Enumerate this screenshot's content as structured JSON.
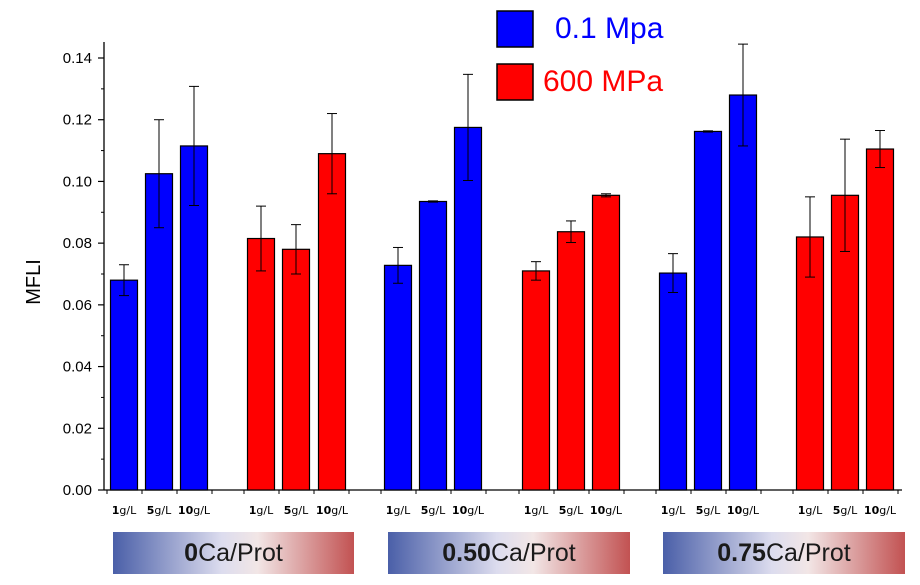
{
  "chart_data": {
    "type": "bar",
    "ylabel": "MFLI",
    "ylim": [
      0,
      0.145
    ],
    "yticks": [
      "0.00",
      "0.02",
      "0.04",
      "0.06",
      "0.08",
      "0.10",
      "0.12",
      "0.14"
    ],
    "legend_position": "top",
    "series": [
      {
        "name": "0.1 Mpa",
        "color": "#0000ff"
      },
      {
        "name": "600 MPa",
        "color": "#ff0000"
      }
    ],
    "groups": [
      {
        "label_bold": "0",
        "label_rest": "Ca/Prot"
      },
      {
        "label_bold": "0.50",
        "label_rest": "Ca/Prot"
      },
      {
        "label_bold": "0.75",
        "label_rest": "Ca/Prot"
      }
    ],
    "category_labels": [
      {
        "num": "1",
        "unit": "g/L"
      },
      {
        "num": "5",
        "unit": "g/L"
      },
      {
        "num": "10",
        "unit": "g/L"
      },
      {
        "num": "1",
        "unit": "g/L"
      },
      {
        "num": "5",
        "unit": "g/L"
      },
      {
        "num": "10",
        "unit": "g/L"
      },
      {
        "num": "1",
        "unit": "g/L"
      },
      {
        "num": "5",
        "unit": "g/L"
      },
      {
        "num": "10",
        "unit": "g/L"
      },
      {
        "num": "1",
        "unit": "g/L"
      },
      {
        "num": "5",
        "unit": "g/L"
      },
      {
        "num": "10",
        "unit": "g/L"
      },
      {
        "num": "1",
        "unit": "g/L"
      },
      {
        "num": "5",
        "unit": "g/L"
      },
      {
        "num": "10",
        "unit": "g/L"
      },
      {
        "num": "1",
        "unit": "g/L"
      },
      {
        "num": "5",
        "unit": "g/L"
      },
      {
        "num": "10",
        "unit": "g/L"
      }
    ],
    "bars": [
      {
        "group": 0,
        "series": 0,
        "category": "1 g/L",
        "value": 0.068,
        "error": 0.005
      },
      {
        "group": 0,
        "series": 0,
        "category": "5 g/L",
        "value": 0.1025,
        "error": 0.0175
      },
      {
        "group": 0,
        "series": 0,
        "category": "10 g/L",
        "value": 0.1115,
        "error": 0.0193
      },
      {
        "group": 0,
        "series": 1,
        "category": "1 g/L",
        "value": 0.0815,
        "error": 0.0105
      },
      {
        "group": 0,
        "series": 1,
        "category": "5 g/L",
        "value": 0.078,
        "error": 0.008
      },
      {
        "group": 0,
        "series": 1,
        "category": "10 g/L",
        "value": 0.109,
        "error": 0.013
      },
      {
        "group": 1,
        "series": 0,
        "category": "1 g/L",
        "value": 0.0728,
        "error": 0.0058
      },
      {
        "group": 1,
        "series": 0,
        "category": "5 g/L",
        "value": 0.0935,
        "error": 0.0002
      },
      {
        "group": 1,
        "series": 0,
        "category": "10 g/L",
        "value": 0.1175,
        "error": 0.0172
      },
      {
        "group": 1,
        "series": 1,
        "category": "1 g/L",
        "value": 0.071,
        "error": 0.003
      },
      {
        "group": 1,
        "series": 1,
        "category": "5 g/L",
        "value": 0.0837,
        "error": 0.0035
      },
      {
        "group": 1,
        "series": 1,
        "category": "10 g/L",
        "value": 0.0955,
        "error": 0.0005
      },
      {
        "group": 2,
        "series": 0,
        "category": "1 g/L",
        "value": 0.0703,
        "error": 0.0063
      },
      {
        "group": 2,
        "series": 0,
        "category": "5 g/L",
        "value": 0.1162,
        "error": 0.0002
      },
      {
        "group": 2,
        "series": 0,
        "category": "10 g/L",
        "value": 0.128,
        "error": 0.0165
      },
      {
        "group": 2,
        "series": 1,
        "category": "1 g/L",
        "value": 0.082,
        "error": 0.013
      },
      {
        "group": 2,
        "series": 1,
        "category": "5 g/L",
        "value": 0.0955,
        "error": 0.0182
      },
      {
        "group": 2,
        "series": 1,
        "category": "10 g/L",
        "value": 0.1105,
        "error": 0.006
      }
    ]
  }
}
